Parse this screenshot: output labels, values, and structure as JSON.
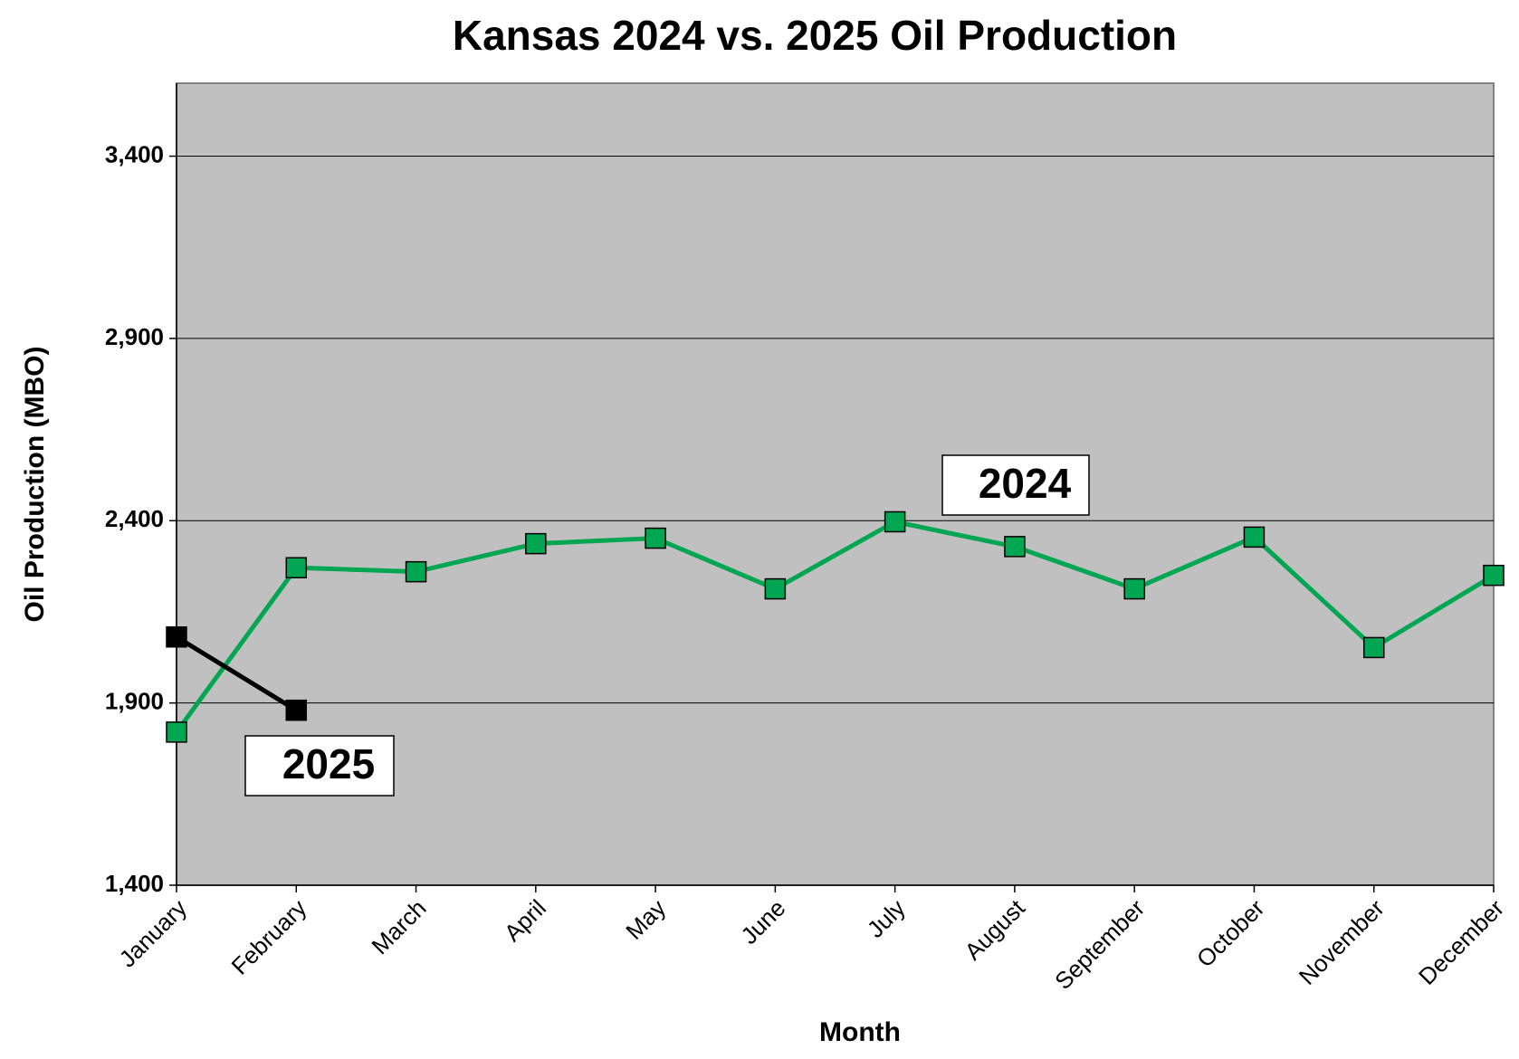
{
  "chart_data": {
    "type": "line",
    "title": "Kansas 2024 vs. 2025 Oil Production",
    "x_label": "Month",
    "y_label": "Oil Production (MBO)",
    "categories": [
      "January",
      "February",
      "March",
      "April",
      "May",
      "June",
      "July",
      "August",
      "September",
      "October",
      "November",
      "December"
    ],
    "series": [
      {
        "name": "2024",
        "color": "#00a651",
        "values": [
          1820,
          2271,
          2260,
          2337,
          2352,
          2213,
          2397,
          2329,
          2213,
          2355,
          2052,
          2250
        ]
      },
      {
        "name": "2025",
        "color": "#000000",
        "values": [
          2081,
          1880,
          null,
          null,
          null,
          null,
          null,
          null,
          null,
          null,
          null,
          null
        ]
      }
    ],
    "ylim": [
      1400,
      3600
    ],
    "yticks": [
      {
        "value": 1400,
        "label": "1,400"
      },
      {
        "value": 1900,
        "label": "1,900"
      },
      {
        "value": 2400,
        "label": "2,400"
      },
      {
        "value": 2900,
        "label": "2,900"
      },
      {
        "value": 3400,
        "label": "3,400"
      }
    ],
    "grid": true,
    "plot_background": "#c0c0c0"
  }
}
